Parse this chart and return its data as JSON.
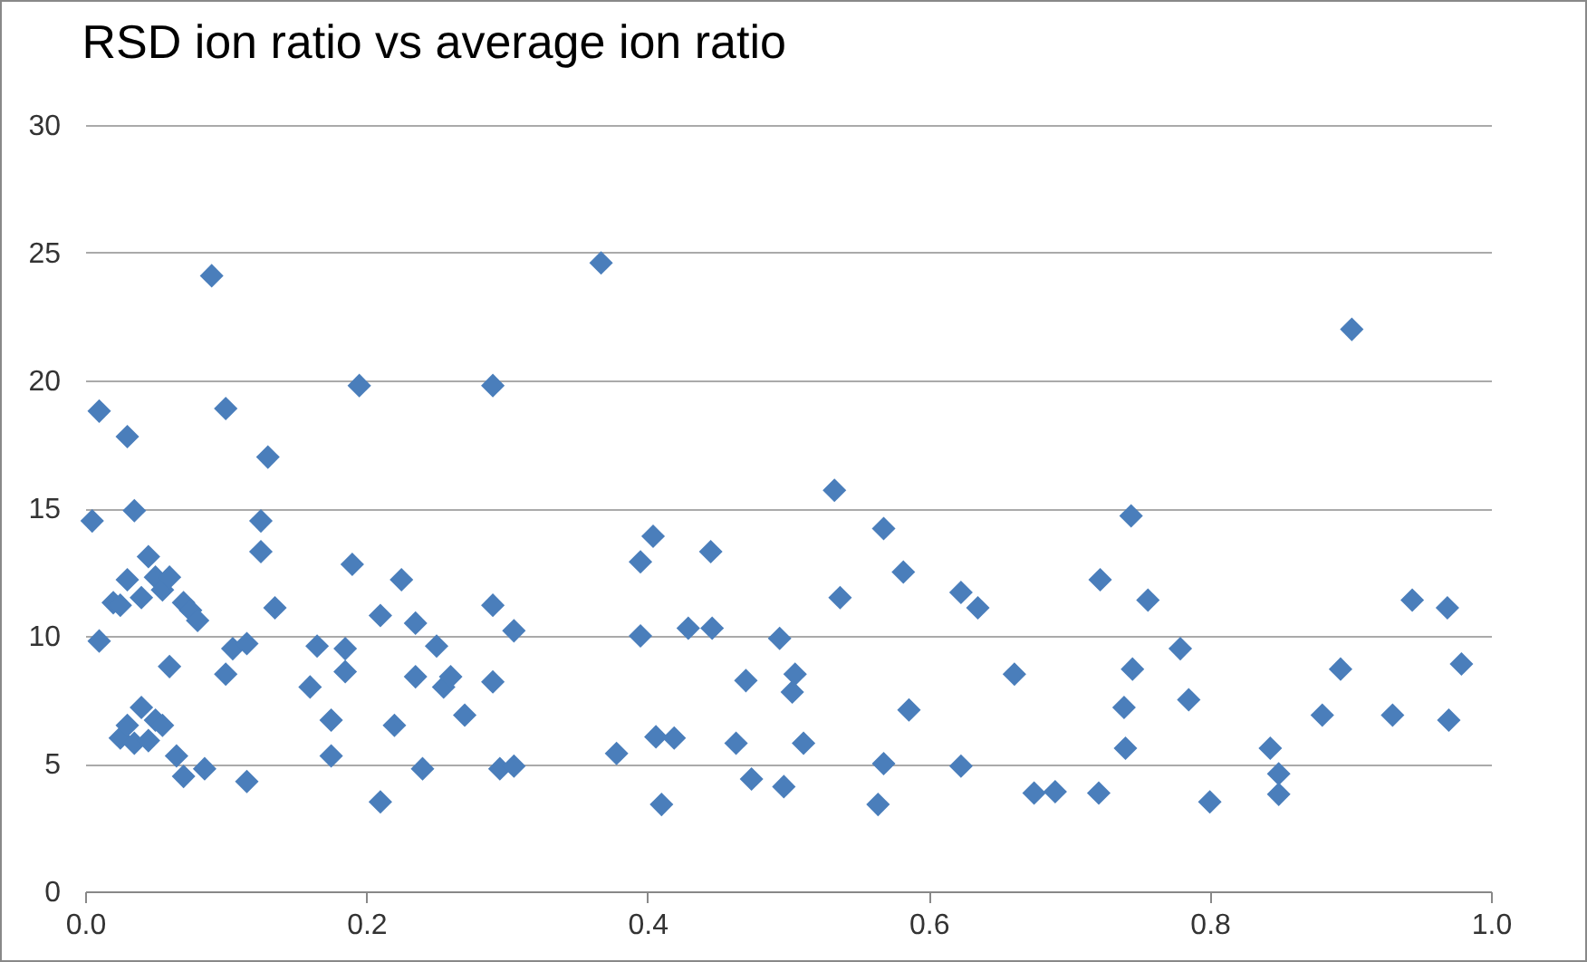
{
  "chart_data": {
    "type": "scatter",
    "title": "RSD ion ratio vs average ion ratio",
    "marker": "diamond",
    "grid": "y",
    "legend": false,
    "xlim": [
      0,
      1
    ],
    "xticks": [
      {
        "value": 0,
        "label": "0.0"
      },
      {
        "value": 0.2,
        "label": "0.2"
      },
      {
        "value": 0.4,
        "label": "0.4"
      },
      {
        "value": 0.6,
        "label": "0.6"
      },
      {
        "value": 0.8,
        "label": "0.8"
      },
      {
        "value": 1,
        "label": "1.0"
      }
    ],
    "ylim": [
      0,
      30
    ],
    "yticks": [
      0,
      5,
      10,
      15,
      20,
      25,
      30
    ],
    "series": [
      {
        "color": "#4a7ebb",
        "x": [
          0.005,
          0.01,
          0.01,
          0.03,
          0.035,
          0.03,
          0.02,
          0.025,
          0.04,
          0.045,
          0.05,
          0.055,
          0.06,
          0.07,
          0.075,
          0.08,
          0.06,
          0.025,
          0.03,
          0.04,
          0.035,
          0.045,
          0.05,
          0.055,
          0.065,
          0.07,
          0.085,
          0.09,
          0.1,
          0.1,
          0.105,
          0.115,
          0.115,
          0.125,
          0.125,
          0.13,
          0.135,
          0.165,
          0.16,
          0.175,
          0.175,
          0.185,
          0.185,
          0.19,
          0.195,
          0.21,
          0.21,
          0.22,
          0.225,
          0.235,
          0.235,
          0.24,
          0.25,
          0.255,
          0.26,
          0.27,
          0.29,
          0.29,
          0.29,
          0.295,
          0.305,
          0.305,
          0.367,
          0.378,
          0.395,
          0.395,
          0.404,
          0.41,
          0.406,
          0.419,
          0.429,
          0.446,
          0.445,
          0.463,
          0.47,
          0.474,
          0.494,
          0.505,
          0.503,
          0.511,
          0.497,
          0.533,
          0.537,
          0.568,
          0.582,
          0.586,
          0.568,
          0.564,
          0.623,
          0.635,
          0.623,
          0.661,
          0.675,
          0.69,
          0.721,
          0.722,
          0.744,
          0.756,
          0.745,
          0.739,
          0.74,
          0.779,
          0.785,
          0.8,
          0.843,
          0.849,
          0.849,
          0.88,
          0.893,
          0.901,
          0.93,
          0.944,
          0.969,
          0.979,
          0.97
        ],
        "values": [
          14.5,
          9.8,
          18.8,
          17.8,
          14.9,
          12.2,
          11.3,
          11.2,
          11.5,
          13.1,
          12.3,
          11.8,
          12.3,
          11.3,
          11,
          10.6,
          8.8,
          6,
          6.5,
          7.2,
          5.8,
          5.9,
          6.7,
          6.5,
          5.3,
          4.5,
          4.8,
          24.1,
          18.9,
          8.5,
          9.5,
          9.7,
          4.3,
          14.5,
          13.3,
          17,
          11.1,
          9.6,
          8,
          6.7,
          5.3,
          9.5,
          8.6,
          12.8,
          19.8,
          10.8,
          3.5,
          6.5,
          12.2,
          10.5,
          8.4,
          4.8,
          9.6,
          8,
          8.4,
          6.9,
          19.8,
          11.2,
          8.2,
          4.8,
          10.2,
          4.9,
          24.6,
          5.4,
          10,
          12.9,
          13.9,
          3.4,
          6.05,
          6,
          10.3,
          10.3,
          13.3,
          5.8,
          8.25,
          4.4,
          9.9,
          8.5,
          7.8,
          5.8,
          4.1,
          15.7,
          11.5,
          14.2,
          12.5,
          7.1,
          5,
          3.4,
          11.7,
          11.1,
          4.9,
          8.5,
          3.85,
          3.9,
          3.85,
          12.2,
          14.7,
          11.4,
          8.7,
          7.2,
          5.6,
          9.5,
          7.5,
          3.5,
          5.6,
          4.6,
          3.8,
          6.9,
          8.7,
          22,
          6.9,
          11.4,
          11.1,
          8.9,
          6.7
        ]
      }
    ]
  }
}
